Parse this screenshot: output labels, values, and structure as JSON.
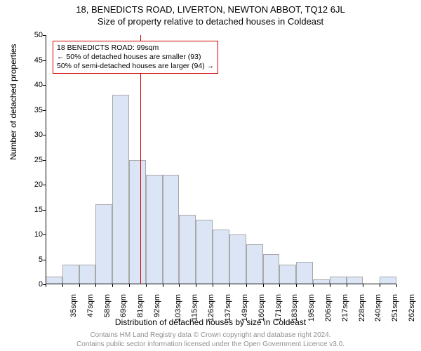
{
  "title": "18, BENEDICTS ROAD, LIVERTON, NEWTON ABBOT, TQ12 6JL",
  "subtitle": "Size of property relative to detached houses in Coldeast",
  "ylabel": "Number of detached properties",
  "xlabel": "Distribution of detached houses by size in Coldeast",
  "footer_line1": "Contains HM Land Registry data © Crown copyright and database right 2024.",
  "footer_line2": "Contains public sector information licensed under the Open Government Licence v3.0.",
  "callout": {
    "line1": "18 BENEDICTS ROAD: 99sqm",
    "line2": "← 50% of detached houses are smaller (93)",
    "line3": "50% of semi-detached houses are larger (94) →"
  },
  "chart": {
    "type": "histogram",
    "ylim": [
      0,
      50
    ],
    "yticks": [
      0,
      5,
      10,
      15,
      20,
      25,
      30,
      35,
      40,
      45,
      50
    ],
    "xtick_labels": [
      "35sqm",
      "47sqm",
      "58sqm",
      "69sqm",
      "81sqm",
      "92sqm",
      "103sqm",
      "115sqm",
      "126sqm",
      "137sqm",
      "149sqm",
      "160sqm",
      "171sqm",
      "183sqm",
      "195sqm",
      "206sqm",
      "217sqm",
      "228sqm",
      "240sqm",
      "251sqm",
      "262sqm"
    ],
    "values": [
      1.5,
      4,
      4,
      16,
      38,
      25,
      22,
      22,
      14,
      13,
      11,
      10,
      8,
      6,
      4,
      4.5,
      1,
      1.5,
      1.5,
      0,
      1.5
    ],
    "reference_index": 6,
    "bar_fill": "#dbe5f6",
    "bar_border": "#a8a8a8",
    "reference_color": "#cc0000",
    "background": "#ffffff",
    "axis_color": "#000000",
    "label_fontsize": 11,
    "title_fontsize": 13
  }
}
